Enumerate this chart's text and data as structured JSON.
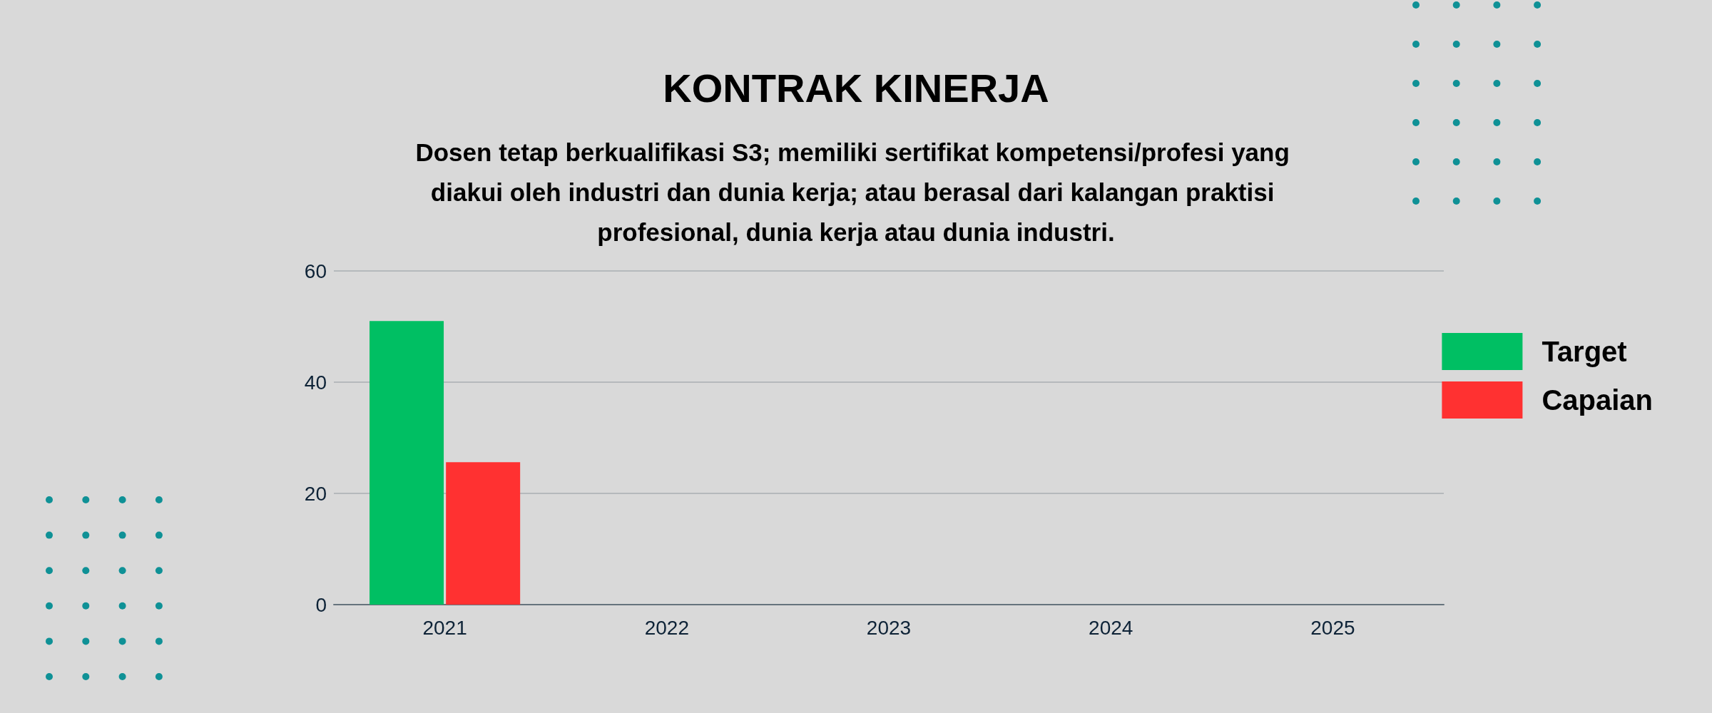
{
  "chart_data": {
    "type": "bar",
    "title": "KONTRAK KINERJA",
    "subtitle": "Dosen tetap berkualifikasi S3; memiliki sertifikat kompetensi/profesi yang diakui oleh industri dan dunia kerja; atau berasal dari kalangan praktisi profesional, dunia kerja atau dunia industri.",
    "categories": [
      "2021",
      "2022",
      "2023",
      "2024",
      "2025"
    ],
    "series": [
      {
        "name": "Target",
        "color": "#00bf63",
        "values": [
          51,
          null,
          null,
          null,
          null
        ]
      },
      {
        "name": "Capaian",
        "color": "#ff3131",
        "values": [
          25.6,
          null,
          null,
          null,
          null
        ]
      }
    ],
    "ylim": [
      0,
      60
    ],
    "yticks": [
      0,
      20,
      40,
      60
    ],
    "grid": "y",
    "legend": "right"
  }
}
